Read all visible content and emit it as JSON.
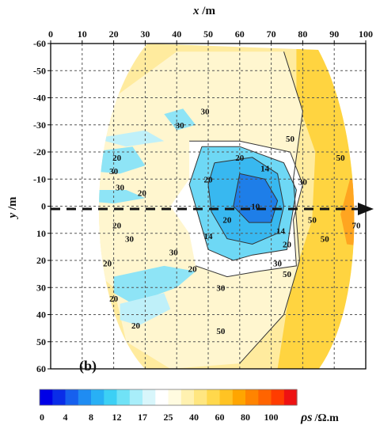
{
  "chart_data": {
    "type": "heatmap",
    "panel_label": "(b)",
    "xlabel": {
      "var": "x",
      "unit": " /m"
    },
    "ylabel": {
      "var": "y",
      "unit": " /m"
    },
    "xlim": [
      0,
      100
    ],
    "ylim": [
      -60,
      60
    ],
    "x_ticks": [
      "0",
      "10",
      "20",
      "30",
      "40",
      "50",
      "60",
      "70",
      "80",
      "90",
      "100"
    ],
    "y_ticks": [
      "-60",
      "-50",
      "-40",
      "-30",
      "-20",
      "-10",
      "0",
      "10",
      "20",
      "30",
      "40",
      "50",
      "60"
    ],
    "grid": true,
    "arrow_along_y": 0,
    "colorbar": {
      "quantity": "ρs",
      "unit": "/Ω.m",
      "tick_labels": [
        "0",
        "4",
        "8",
        "12",
        "17",
        "25",
        "40",
        "60",
        "80",
        "100"
      ],
      "colors": [
        "#0000e6",
        "#0a2de8",
        "#1660ee",
        "#1f8cf2",
        "#28b0f5",
        "#3cd0f5",
        "#70e2f6",
        "#a8eefa",
        "#d8f6fb",
        "#ffffff",
        "#fffbe0",
        "#fff1b0",
        "#ffe680",
        "#ffd84c",
        "#ffc323",
        "#ffa500",
        "#ff8400",
        "#ff6400",
        "#ff3c00",
        "#ee1212"
      ]
    },
    "contour_labels": [
      {
        "value": "30",
        "x": 49,
        "y": -35
      },
      {
        "value": "30",
        "x": 41,
        "y": -30
      },
      {
        "value": "50",
        "x": 76,
        "y": -25
      },
      {
        "value": "50",
        "x": 92,
        "y": -18
      },
      {
        "value": "20",
        "x": 21,
        "y": -18
      },
      {
        "value": "20",
        "x": 60,
        "y": -18
      },
      {
        "value": "14",
        "x": 68,
        "y": -14
      },
      {
        "value": "30",
        "x": 20,
        "y": -13
      },
      {
        "value": "20",
        "x": 50,
        "y": -10
      },
      {
        "value": "30",
        "x": 80,
        "y": -9
      },
      {
        "value": "30",
        "x": 22,
        "y": -7
      },
      {
        "value": "20",
        "x": 29,
        "y": -5
      },
      {
        "value": "10",
        "x": 65,
        "y": 0
      },
      {
        "value": "20",
        "x": 56,
        "y": 5
      },
      {
        "value": "14",
        "x": 50,
        "y": 11
      },
      {
        "value": "14",
        "x": 73,
        "y": 9
      },
      {
        "value": "20",
        "x": 21,
        "y": 7
      },
      {
        "value": "30",
        "x": 25,
        "y": 12
      },
      {
        "value": "30",
        "x": 39,
        "y": 17
      },
      {
        "value": "20",
        "x": 75,
        "y": 14
      },
      {
        "value": "50",
        "x": 83,
        "y": 5
      },
      {
        "value": "50",
        "x": 87,
        "y": 12
      },
      {
        "value": "70",
        "x": 97,
        "y": 7
      },
      {
        "value": "30",
        "x": 72,
        "y": 21
      },
      {
        "value": "20",
        "x": 18,
        "y": 21
      },
      {
        "value": "20",
        "x": 45,
        "y": 23
      },
      {
        "value": "30",
        "x": 54,
        "y": 30
      },
      {
        "value": "50",
        "x": 75,
        "y": 25
      },
      {
        "value": "20",
        "x": 20,
        "y": 34
      },
      {
        "value": "20",
        "x": 27,
        "y": 44
      },
      {
        "value": "50",
        "x": 54,
        "y": 46
      }
    ]
  }
}
